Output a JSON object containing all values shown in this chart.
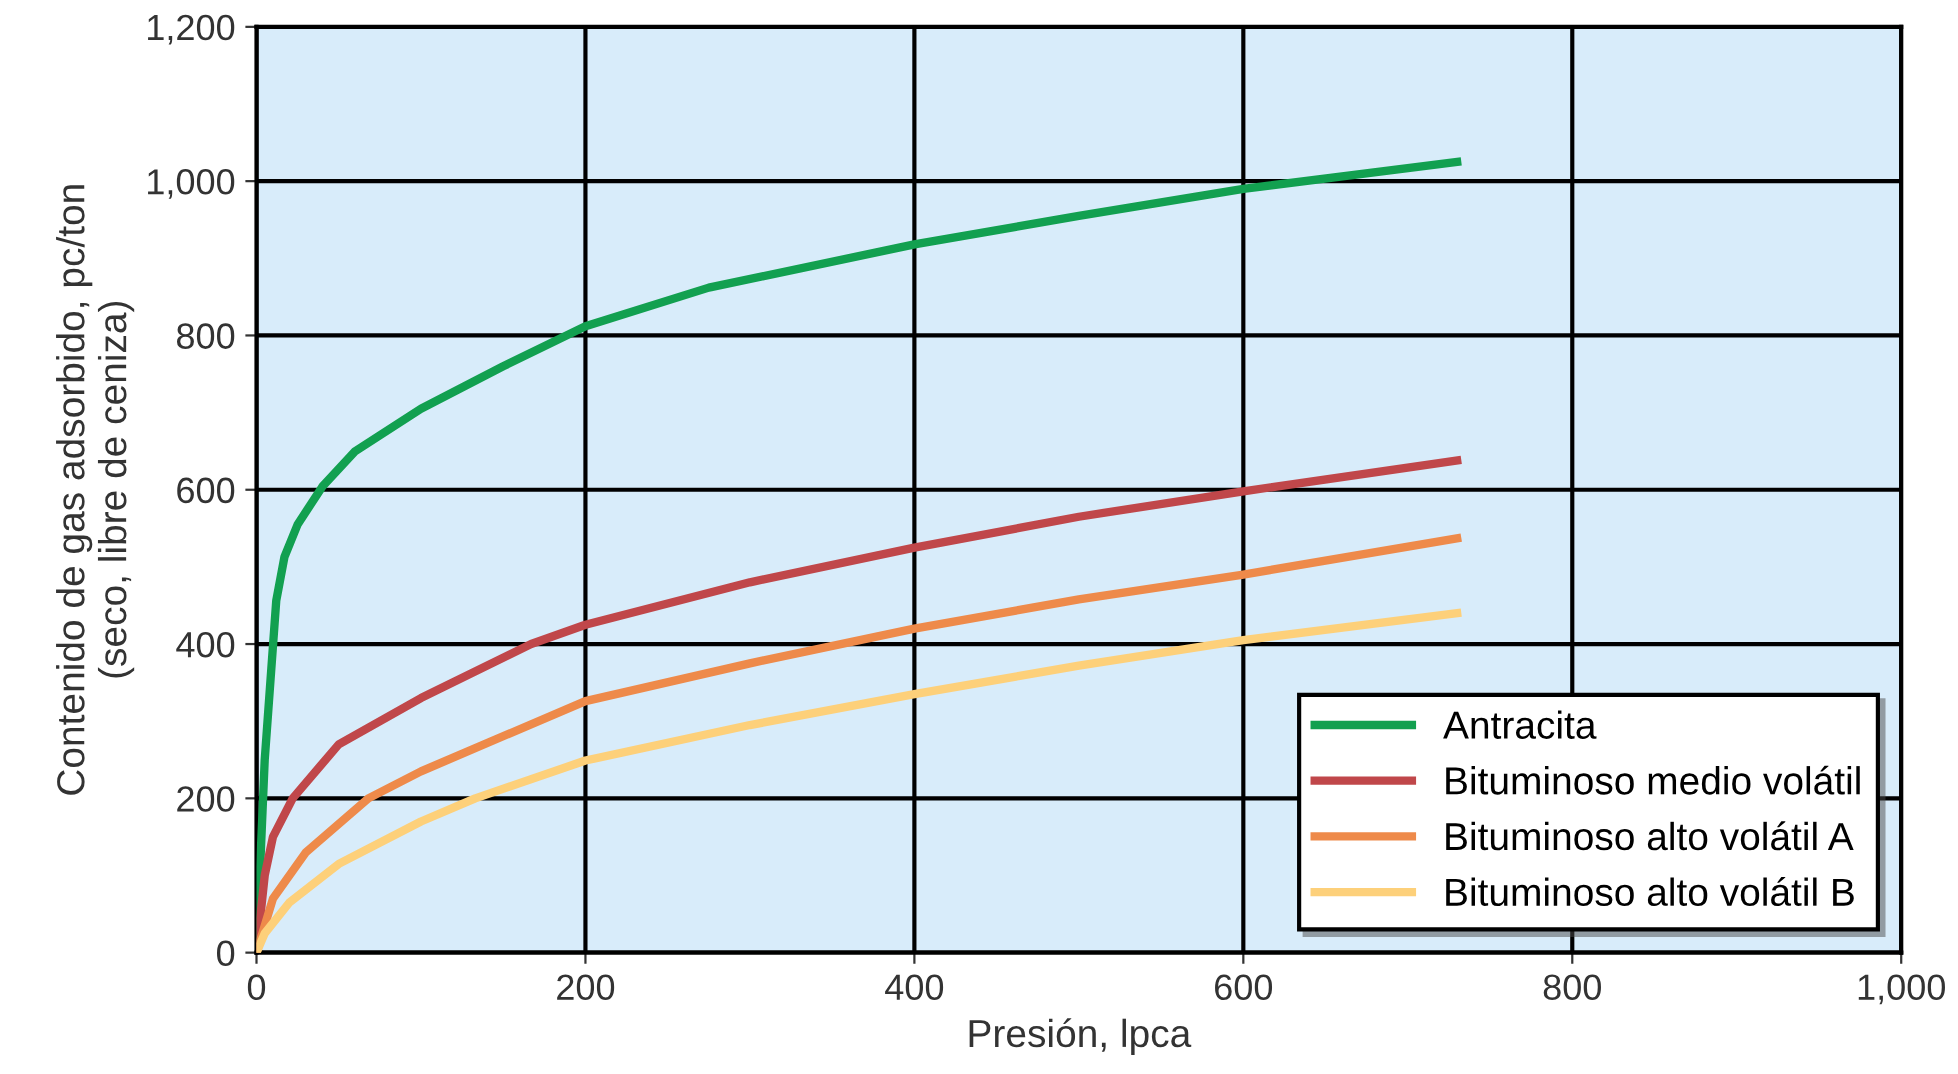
{
  "chart_data": {
    "type": "line",
    "xlabel": "Presión, lpca",
    "ylabel": "Contenido de gas adsorbido, pc/ton\n(seco, libre de ceniza)",
    "xlim": [
      0,
      1000
    ],
    "ylim": [
      0,
      1200
    ],
    "xticks": [
      0,
      200,
      400,
      600,
      800,
      {
        "value": 1000,
        "label": "1,000"
      }
    ],
    "yticks": [
      0,
      200,
      400,
      600,
      800,
      {
        "value": 1000,
        "label": "1,000"
      },
      {
        "value": 1200,
        "label": "1,200"
      }
    ],
    "grid": true,
    "legend": "bottom right",
    "marker": "none",
    "line_style": "solid",
    "series": [
      {
        "name": "Antracita",
        "color": "#12a050",
        "x": [
          0,
          5,
          12,
          17,
          25,
          40,
          60,
          100,
          150,
          200,
          275,
          400,
          500,
          600,
          730
        ],
        "values": [
          0,
          250,
          456,
          513,
          555,
          604,
          650,
          705,
          760,
          812,
          862,
          918,
          955,
          990,
          1025
        ]
      },
      {
        "name": "Bituminoso medio volátil",
        "color": "#c0474a",
        "x": [
          0,
          5,
          10,
          22,
          50,
          100,
          167,
          200,
          300,
          400,
          500,
          600,
          730
        ],
        "values": [
          0,
          100,
          150,
          200,
          270,
          330,
          400,
          425,
          480,
          525,
          565,
          598,
          638
        ]
      },
      {
        "name": "Bituminoso alto volátil A",
        "color": "#ee8a4a",
        "x": [
          0,
          10,
          30,
          68,
          100,
          200,
          300,
          400,
          500,
          600,
          730
        ],
        "values": [
          0,
          70,
          130,
          200,
          235,
          326,
          375,
          420,
          458,
          490,
          537
        ]
      },
      {
        "name": "Bituminoso alto volátil B",
        "color": "#fdd07a",
        "x": [
          0,
          5,
          20,
          50,
          100,
          133,
          200,
          300,
          400,
          500,
          600,
          730
        ],
        "values": [
          0,
          25,
          65,
          115,
          170,
          200,
          249,
          295,
          335,
          372,
          405,
          440
        ]
      }
    ]
  }
}
